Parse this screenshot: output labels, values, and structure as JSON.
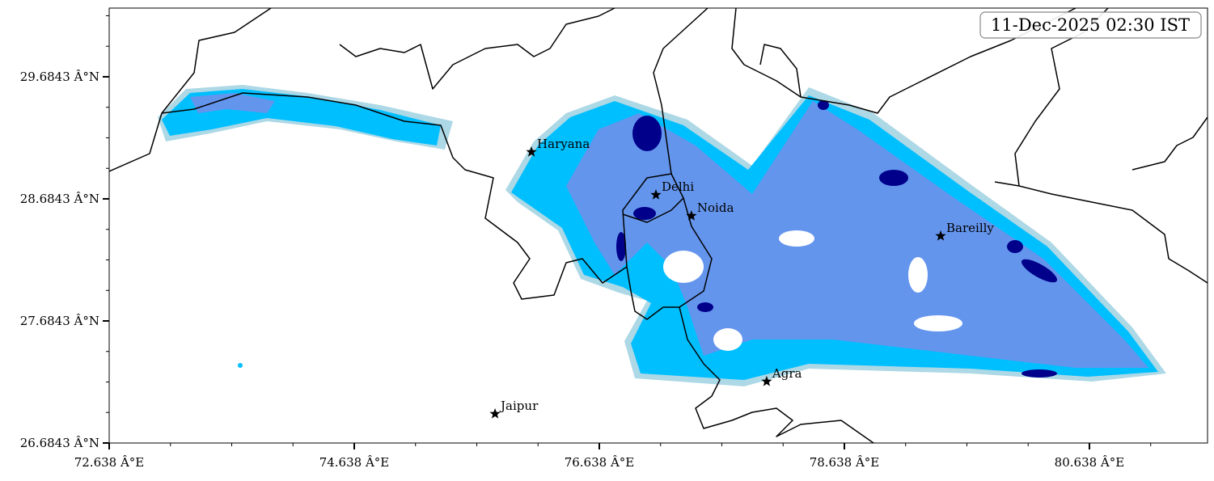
{
  "map": {
    "timestamp": "11-Dec-2025 02:30 IST",
    "xlim": [
      72.638,
      81.602
    ],
    "ylim": [
      26.6843,
      30.247
    ],
    "xticks": [
      {
        "value": 72.638,
        "label": "72.638 Â°E"
      },
      {
        "value": 74.638,
        "label": "74.638 Â°E"
      },
      {
        "value": 76.638,
        "label": "76.638 Â°E"
      },
      {
        "value": 78.638,
        "label": "78.638 Â°E"
      },
      {
        "value": 80.638,
        "label": "80.638 Â°E"
      }
    ],
    "yticks": [
      {
        "value": 26.6843,
        "label": "26.6843 Â°N"
      },
      {
        "value": 27.6843,
        "label": "27.6843 Â°N"
      },
      {
        "value": 28.6843,
        "label": "28.6843 Â°N"
      },
      {
        "value": 29.6843,
        "label": "29.6843 Â°N"
      }
    ],
    "cities": [
      {
        "name": "Haryana",
        "lon": 76.084,
        "lat": 29.068
      },
      {
        "name": "Delhi",
        "lon": 77.1,
        "lat": 28.717
      },
      {
        "name": "Noida",
        "lon": 77.39,
        "lat": 28.545
      },
      {
        "name": "Bareilly",
        "lon": 79.424,
        "lat": 28.38
      },
      {
        "name": "Agra",
        "lon": 78.004,
        "lat": 27.188
      },
      {
        "name": "Jaipur",
        "lon": 75.787,
        "lat": 26.923
      }
    ]
  }
}
